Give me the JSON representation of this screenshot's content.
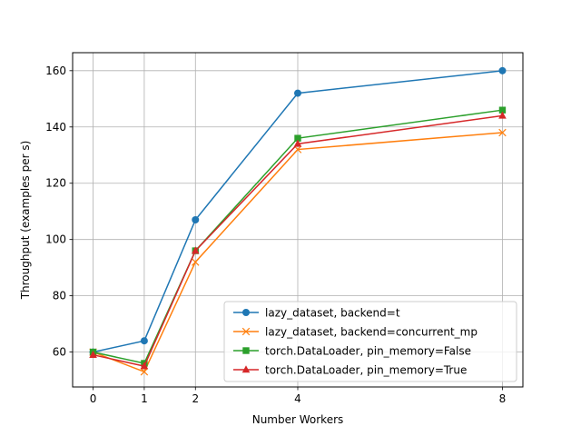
{
  "chart_data": {
    "type": "line",
    "xlabel": "Number Workers",
    "ylabel": "Throughput (examples per s)",
    "xlim": [
      -0.4,
      8.4
    ],
    "ylim": [
      47.6,
      166.4
    ],
    "xticks": [
      0,
      1,
      2,
      4,
      8
    ],
    "yticks": [
      60,
      80,
      100,
      120,
      140,
      160
    ],
    "grid": true,
    "legend_position": "lower-right",
    "x": [
      0,
      1,
      2,
      4,
      8
    ],
    "series": [
      {
        "name": "lazy_dataset, backend=t",
        "values": [
          60,
          64,
          107,
          152,
          160
        ],
        "color": "#1f77b4",
        "marker": "circle"
      },
      {
        "name": "lazy_dataset, backend=concurrent_mp",
        "values": [
          60,
          53,
          92,
          132,
          138
        ],
        "color": "#ff7f0e",
        "marker": "x"
      },
      {
        "name": "torch.DataLoader, pin_memory=False",
        "values": [
          60,
          56,
          96,
          136,
          146
        ],
        "color": "#2ca02c",
        "marker": "square"
      },
      {
        "name": "torch.DataLoader, pin_memory=True",
        "values": [
          59,
          55,
          96,
          134,
          144
        ],
        "color": "#d62728",
        "marker": "triangle"
      }
    ]
  }
}
